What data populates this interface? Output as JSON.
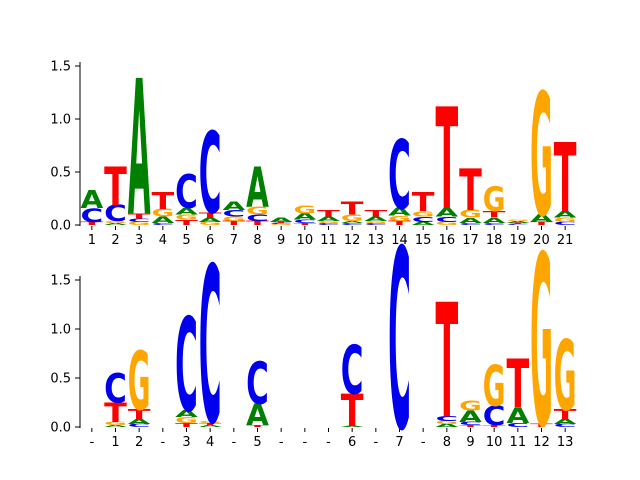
{
  "colors": {
    "A": "#008000",
    "C": "#0000ee",
    "G": "#ffa500",
    "T": "#ff0000"
  },
  "chart_data": [
    {
      "type": "sequence_logo",
      "ylim": [
        0,
        1.6
      ],
      "yticks": [
        0.0,
        0.5,
        1.0,
        1.5
      ],
      "ytick_labels": [
        "0.0",
        "0.5",
        "1.0",
        "1.5"
      ],
      "positions": [
        "1",
        "2",
        "3",
        "4",
        "5",
        "6",
        "7",
        "8",
        "9",
        "10",
        "11",
        "12",
        "13",
        "14",
        "15",
        "16",
        "17",
        "18",
        "19",
        "20",
        "21"
      ],
      "stacks": [
        [
          [
            "T",
            0.03
          ],
          [
            "C",
            0.13
          ],
          [
            "A",
            0.17
          ]
        ],
        [
          [
            "A",
            0.02
          ],
          [
            "G",
            0.02
          ],
          [
            "C",
            0.15
          ],
          [
            "T",
            0.36
          ]
        ],
        [
          [
            "G",
            0.03
          ],
          [
            "C",
            0.03
          ],
          [
            "T",
            0.05
          ],
          [
            "A",
            1.28
          ]
        ],
        [
          [
            "C",
            0.02
          ],
          [
            "A",
            0.06
          ],
          [
            "G",
            0.07
          ],
          [
            "T",
            0.16
          ]
        ],
        [
          [
            "T",
            0.05
          ],
          [
            "G",
            0.05
          ],
          [
            "A",
            0.06
          ],
          [
            "C",
            0.32
          ]
        ],
        [
          [
            "G",
            0.03
          ],
          [
            "A",
            0.04
          ],
          [
            "T",
            0.05
          ],
          [
            "C",
            0.77
          ]
        ],
        [
          [
            "T",
            0.04
          ],
          [
            "G",
            0.04
          ],
          [
            "C",
            0.06
          ],
          [
            "A",
            0.08
          ]
        ],
        [
          [
            "T",
            0.04
          ],
          [
            "C",
            0.06
          ],
          [
            "G",
            0.07
          ],
          [
            "A",
            0.38
          ]
        ],
        [
          [
            "G",
            0.01
          ],
          [
            "C",
            0.01
          ],
          [
            "T",
            0.01
          ],
          [
            "A",
            0.04
          ]
        ],
        [
          [
            "T",
            0.02
          ],
          [
            "C",
            0.03
          ],
          [
            "A",
            0.06
          ],
          [
            "G",
            0.07
          ]
        ],
        [
          [
            "C",
            0.02
          ],
          [
            "G",
            0.02
          ],
          [
            "A",
            0.04
          ],
          [
            "T",
            0.06
          ]
        ],
        [
          [
            "C",
            0.02
          ],
          [
            "A",
            0.02
          ],
          [
            "G",
            0.06
          ],
          [
            "T",
            0.12
          ]
        ],
        [
          [
            "C",
            0.02
          ],
          [
            "G",
            0.02
          ],
          [
            "A",
            0.04
          ],
          [
            "T",
            0.06
          ]
        ],
        [
          [
            "T",
            0.04
          ],
          [
            "G",
            0.05
          ],
          [
            "A",
            0.07
          ],
          [
            "C",
            0.65
          ]
        ],
        [
          [
            "A",
            0.03
          ],
          [
            "C",
            0.05
          ],
          [
            "G",
            0.05
          ],
          [
            "T",
            0.18
          ]
        ],
        [
          [
            "G",
            0.03
          ],
          [
            "C",
            0.05
          ],
          [
            "A",
            0.08
          ],
          [
            "T",
            0.96
          ]
        ],
        [
          [
            "C",
            0.02
          ],
          [
            "A",
            0.05
          ],
          [
            "G",
            0.07
          ],
          [
            "T",
            0.39
          ]
        ],
        [
          [
            "C",
            0.02
          ],
          [
            "A",
            0.05
          ],
          [
            "T",
            0.06
          ],
          [
            "G",
            0.23
          ]
        ],
        [
          [
            "C",
            0.01
          ],
          [
            "T",
            0.01
          ],
          [
            "A",
            0.02
          ],
          [
            "G",
            0.01
          ]
        ],
        [
          [
            "T",
            0.03
          ],
          [
            "A",
            0.07
          ],
          [
            "G",
            1.16
          ]
        ],
        [
          [
            "C",
            0.03
          ],
          [
            "G",
            0.04
          ],
          [
            "A",
            0.06
          ],
          [
            "T",
            0.65
          ]
        ]
      ]
    },
    {
      "type": "sequence_logo",
      "ylim": [
        0,
        1.9
      ],
      "yticks": [
        0.0,
        0.5,
        1.0,
        1.5
      ],
      "ytick_labels": [
        "0.0",
        "0.5",
        "1.0",
        "1.5"
      ],
      "positions": [
        "-",
        "1",
        "2",
        "-",
        "3",
        "4",
        "-",
        "5",
        "-",
        "-",
        "-",
        "6",
        "-",
        "7",
        "-",
        "8",
        "9",
        "10",
        "11",
        "12",
        "13"
      ],
      "stacks": [
        [],
        [
          [
            "A",
            0.02
          ],
          [
            "G",
            0.03
          ],
          [
            "T",
            0.2
          ],
          [
            "C",
            0.3
          ]
        ],
        [
          [
            "C",
            0.03
          ],
          [
            "A",
            0.05
          ],
          [
            "T",
            0.1
          ],
          [
            "G",
            0.6
          ]
        ],
        [],
        [
          [
            "T",
            0.04
          ],
          [
            "G",
            0.06
          ],
          [
            "A",
            0.07
          ],
          [
            "C",
            0.96
          ]
        ],
        [
          [
            "A",
            0.02
          ],
          [
            "T",
            0.02
          ],
          [
            "G",
            0.02
          ],
          [
            "C",
            1.6
          ]
        ],
        [],
        [
          [
            "T",
            0.02
          ],
          [
            "A",
            0.22
          ],
          [
            "C",
            0.43
          ]
        ],
        [],
        [],
        [],
        [
          [
            "A",
            0.01
          ],
          [
            "T",
            0.33
          ],
          [
            "C",
            0.5
          ]
        ],
        [],
        [
          [
            "C",
            1.84
          ]
        ],
        [],
        [
          [
            "A",
            0.03
          ],
          [
            "G",
            0.03
          ],
          [
            "C",
            0.05
          ],
          [
            "T",
            1.17
          ]
        ],
        [
          [
            "T",
            0.02
          ],
          [
            "C",
            0.03
          ],
          [
            "A",
            0.12
          ],
          [
            "G",
            0.1
          ]
        ],
        [
          [
            "T",
            0.02
          ],
          [
            "C",
            0.2
          ],
          [
            "G",
            0.42
          ]
        ],
        [
          [
            "C",
            0.04
          ],
          [
            "A",
            0.16
          ],
          [
            "T",
            0.5
          ]
        ],
        [
          [
            "T",
            0.03
          ],
          [
            "G",
            1.75
          ]
        ],
        [
          [
            "C",
            0.03
          ],
          [
            "A",
            0.05
          ],
          [
            "T",
            0.1
          ],
          [
            "G",
            0.72
          ]
        ]
      ]
    }
  ]
}
